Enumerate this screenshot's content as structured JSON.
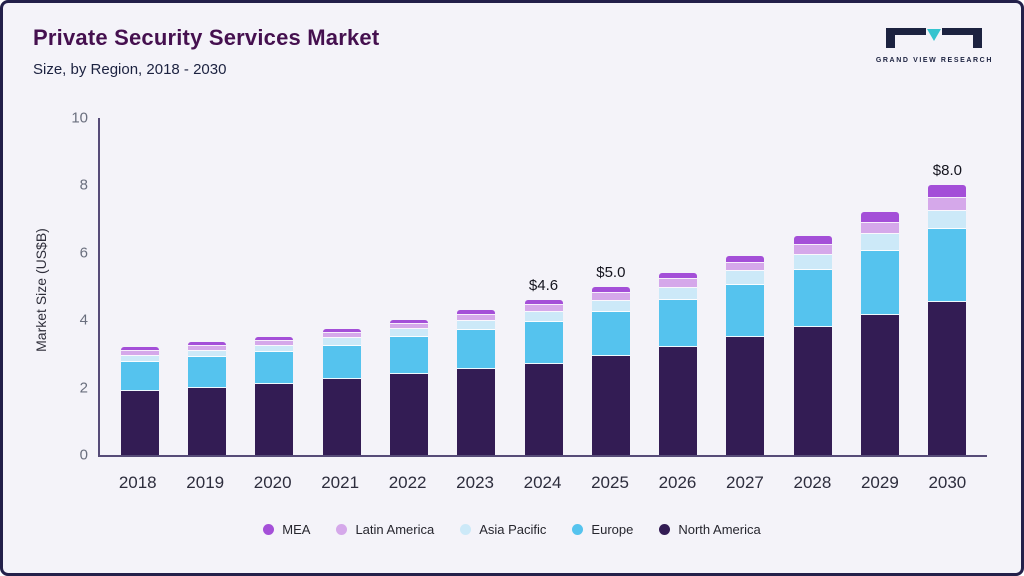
{
  "header": {
    "title": "Private Security Services Market",
    "subtitle": "Size, by Region, 2018 - 2030",
    "logo_text": "GRAND VIEW RESEARCH"
  },
  "colors": {
    "background": "#f4f3f9",
    "border": "#23204a",
    "title": "#45104f",
    "subtitle": "#1c2240",
    "axis": "#564b78",
    "logo_teal": "#35c4cf",
    "logo_navy": "#1c2240"
  },
  "chart_data": {
    "type": "bar",
    "stacked": true,
    "title": "Private Security Services Market Size, by Region, 2018 - 2030",
    "xlabel": "",
    "ylabel": "Market Size (US$B)",
    "ylim": [
      0,
      10
    ],
    "yticks": [
      0,
      2,
      4,
      6,
      8,
      10
    ],
    "grid": false,
    "legend_position": "bottom",
    "categories": [
      "2018",
      "2019",
      "2020",
      "2021",
      "2022",
      "2023",
      "2024",
      "2025",
      "2026",
      "2027",
      "2028",
      "2029",
      "2030"
    ],
    "series": [
      {
        "name": "North America",
        "color": "#331c54",
        "values": [
          1.9,
          2.0,
          2.1,
          2.25,
          2.4,
          2.55,
          2.7,
          2.95,
          3.2,
          3.5,
          3.8,
          4.15,
          4.55
        ]
      },
      {
        "name": "Europe",
        "color": "#55c3ee",
        "values": [
          0.85,
          0.9,
          0.95,
          1.0,
          1.1,
          1.15,
          1.25,
          1.3,
          1.4,
          1.55,
          1.7,
          1.9,
          2.15
        ]
      },
      {
        "name": "Asia Pacific",
        "color": "#cce9f8",
        "values": [
          0.2,
          0.2,
          0.2,
          0.23,
          0.25,
          0.28,
          0.3,
          0.33,
          0.37,
          0.4,
          0.45,
          0.5,
          0.55
        ]
      },
      {
        "name": "Latin America",
        "color": "#d5a8ea",
        "values": [
          0.13,
          0.13,
          0.14,
          0.15,
          0.15,
          0.17,
          0.2,
          0.22,
          0.24,
          0.25,
          0.28,
          0.33,
          0.38
        ]
      },
      {
        "name": "MEA",
        "color": "#a44fd8",
        "values": [
          0.12,
          0.12,
          0.11,
          0.12,
          0.1,
          0.15,
          0.15,
          0.2,
          0.19,
          0.2,
          0.27,
          0.32,
          0.37
        ]
      }
    ],
    "totals": [
      3.2,
      3.35,
      3.5,
      3.75,
      4.0,
      4.3,
      4.6,
      5.0,
      5.4,
      5.9,
      6.5,
      7.2,
      8.0
    ],
    "value_labels": {
      "2024": "$4.6",
      "2025": "$5.0",
      "2030": "$8.0"
    }
  },
  "legend": {
    "items": [
      {
        "label": "MEA",
        "color": "#a44fd8"
      },
      {
        "label": "Latin America",
        "color": "#d5a8ea"
      },
      {
        "label": "Asia Pacific",
        "color": "#cce9f8"
      },
      {
        "label": "Europe",
        "color": "#55c3ee"
      },
      {
        "label": "North America",
        "color": "#331c54"
      }
    ]
  }
}
